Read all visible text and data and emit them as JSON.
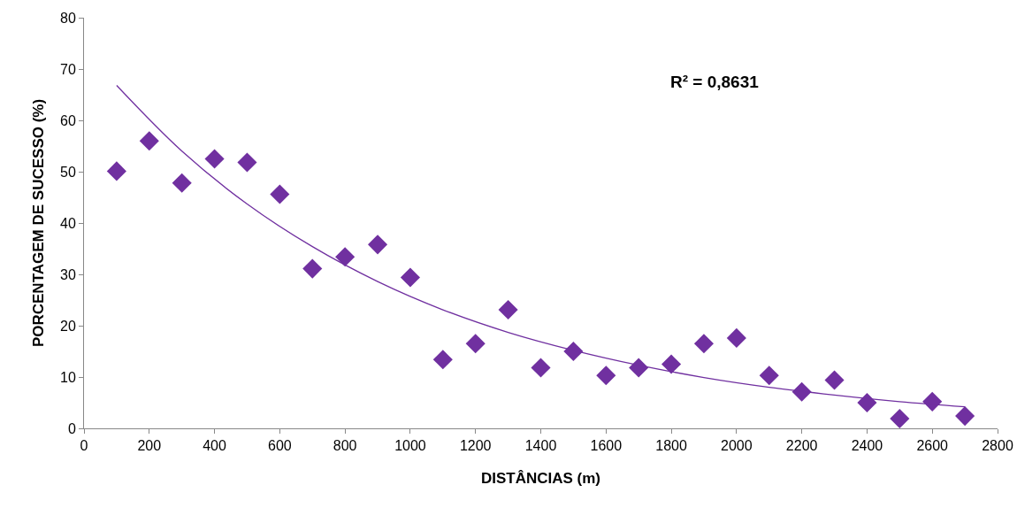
{
  "chart_data": {
    "type": "scatter",
    "xlabel": "DISTÂNCIAS (m)",
    "ylabel": "PORCENTAGEM DE SUCESSO (%)",
    "annotations": [
      "R² = 0,8631"
    ],
    "grid": false,
    "legend": false,
    "xlim": [
      0,
      2800
    ],
    "xticks": [
      0,
      200,
      400,
      600,
      800,
      1000,
      1200,
      1400,
      1600,
      1800,
      2000,
      2200,
      2400,
      2600,
      2800
    ],
    "ylim": [
      0,
      80
    ],
    "yticks": [
      0,
      10,
      20,
      30,
      40,
      50,
      60,
      70,
      80
    ],
    "series": [
      {
        "marker": "diamond",
        "color": "#7030a0",
        "x": [
          100,
          200,
          300,
          400,
          500,
          600,
          700,
          800,
          900,
          1000,
          1100,
          1200,
          1300,
          1400,
          1500,
          1600,
          1700,
          1800,
          1900,
          2000,
          2100,
          2200,
          2300,
          2400,
          2500,
          2600,
          2700
        ],
        "values": [
          50.1,
          56.0,
          47.8,
          52.5,
          51.8,
          45.6,
          31.1,
          33.4,
          35.8,
          29.4,
          13.4,
          16.5,
          23.1,
          11.8,
          15.0,
          10.3,
          11.8,
          12.5,
          16.5,
          17.6,
          10.3,
          7.1,
          9.4,
          5.0,
          1.9,
          5.2,
          2.4
        ]
      },
      {
        "type": "line",
        "marker": "none",
        "color": "#7030a0",
        "x": [
          100,
          300,
          500,
          700,
          900,
          1100,
          1300,
          1500,
          1700,
          1900,
          2100,
          2300,
          2500,
          2700
        ],
        "values": [
          66.8,
          54.0,
          43.7,
          35.4,
          28.6,
          23.1,
          18.7,
          15.2,
          12.3,
          9.9,
          8.0,
          6.5,
          5.2,
          4.2
        ]
      }
    ]
  }
}
